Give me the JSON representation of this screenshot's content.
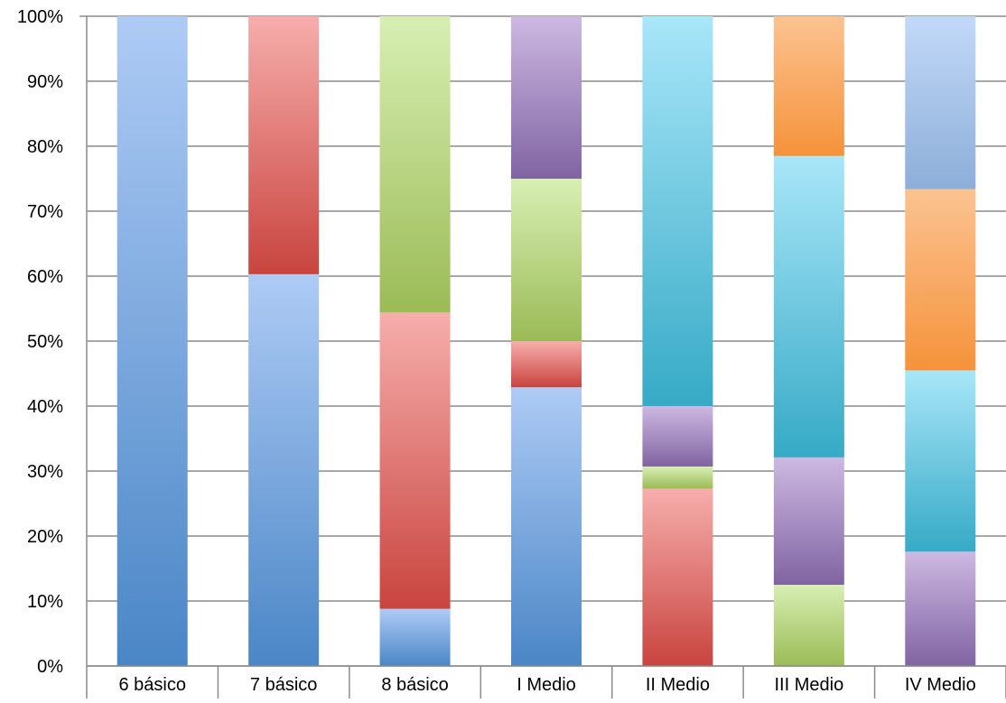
{
  "chart_data": {
    "type": "bar",
    "stacked": true,
    "percent": true,
    "title": "",
    "xlabel": "",
    "ylabel": "",
    "ylim": [
      0,
      100
    ],
    "yticks": [
      "0%",
      "10%",
      "20%",
      "30%",
      "40%",
      "50%",
      "60%",
      "70%",
      "80%",
      "90%",
      "100%"
    ],
    "grid": true,
    "legend": "none",
    "categories": [
      "6 básico",
      "7 básico",
      "8 básico",
      "I Medio",
      "II Medio",
      "III Medio",
      "IV Medio"
    ],
    "series": [
      {
        "color_top": "#aecbf5",
        "color_bottom": "#4a86c6",
        "values": [
          100,
          60.3,
          8.8,
          42.9,
          0,
          0,
          0
        ]
      },
      {
        "color_top": "#f6aeac",
        "color_bottom": "#c9443f",
        "values": [
          0,
          39.7,
          45.6,
          7.1,
          27.3,
          0,
          0
        ]
      },
      {
        "color_top": "#d7efb3",
        "color_bottom": "#9bbb56",
        "values": [
          0,
          0,
          45.6,
          25.0,
          3.4,
          12.5,
          0
        ]
      },
      {
        "color_top": "#cdb9e2",
        "color_bottom": "#8064a2",
        "values": [
          0,
          0,
          0,
          25.0,
          9.3,
          19.6,
          17.6
        ]
      },
      {
        "color_top": "#a9e6f9",
        "color_bottom": "#36aac6",
        "values": [
          0,
          0,
          0,
          0,
          60.0,
          46.4,
          27.9
        ]
      },
      {
        "color_top": "#fbc391",
        "color_bottom": "#f6923b",
        "values": [
          0,
          0,
          0,
          0,
          0,
          21.5,
          27.9
        ]
      },
      {
        "color_top": "#c3d9f8",
        "color_bottom": "#8caed9",
        "values": [
          0,
          0,
          0,
          0,
          0,
          0,
          26.6
        ]
      }
    ]
  }
}
